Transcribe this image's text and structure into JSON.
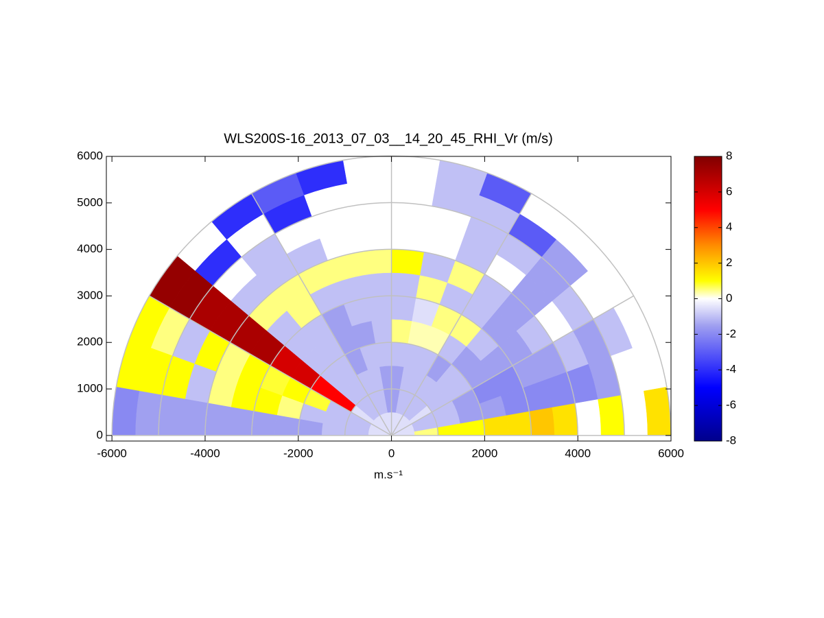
{
  "chart_data": {
    "type": "polar_heatmap",
    "title": "WLS200S-16_2013_07_03__14_20_45_RHI_Vr (m/s)",
    "xlabel": "m.s⁻¹",
    "xlim": [
      -6120,
      6000
    ],
    "ylim": [
      -120,
      6000
    ],
    "xticks": [
      -6000,
      -4000,
      -2000,
      0,
      2000,
      4000,
      6000
    ],
    "yticks": [
      0,
      1000,
      2000,
      3000,
      4000,
      5000,
      6000
    ],
    "polar_grid": {
      "rings": [
        1000,
        2000,
        3000,
        4000,
        5000,
        6000
      ],
      "spokes": [
        0,
        30,
        60,
        90,
        120,
        150,
        180
      ]
    },
    "angles": [
      0,
      10,
      20,
      30,
      40,
      50,
      60,
      70,
      80,
      90,
      100,
      110,
      120,
      130,
      140,
      150,
      160,
      170,
      180
    ],
    "ranges": [
      0,
      500,
      1000,
      1500,
      2000,
      2500,
      3000,
      3500,
      4000,
      4500,
      5000,
      5500,
      6000
    ],
    "values": [
      [
        -0.5,
        0.5,
        1,
        1,
        1.5,
        1.5,
        2,
        1.5,
        null,
        1,
        null,
        1.5
      ],
      [
        -0.5,
        -1,
        -1,
        -1.5,
        -1.5,
        -2,
        -2,
        -2,
        -2,
        -1.5,
        null,
        null
      ],
      [
        -0.5,
        -1,
        -1,
        -1.5,
        -2,
        -2,
        -1.5,
        -1.5,
        -1,
        -1.5,
        -1,
        null
      ],
      [
        -0.5,
        -0.5,
        -1,
        -1,
        -1.5,
        -1.5,
        -1.5,
        -1,
        null,
        -1,
        null,
        null
      ],
      [
        -0.5,
        -1,
        -1,
        -1,
        -1.5,
        -1,
        -1.5,
        -1.5,
        -1.5,
        -1.5,
        -1.5,
        null
      ],
      [
        -0.5,
        -1,
        -1,
        -1.5,
        -1,
        0.5,
        -1,
        -1,
        null,
        -1,
        -3,
        null
      ],
      [
        -0.5,
        -1,
        -1,
        -1,
        0.3,
        0.5,
        -1,
        0.5,
        -1,
        -1,
        -1,
        -3
      ],
      [
        -0.5,
        -1,
        -1,
        -1,
        0.3,
        -0.5,
        0.5,
        -1,
        null,
        null,
        -1,
        -1
      ],
      [
        -0.5,
        -1.5,
        -1.5,
        -1,
        0.5,
        -1,
        -1,
        1,
        null,
        null,
        null,
        null
      ],
      [
        -0.5,
        -1.5,
        -1.5,
        -1,
        -1,
        -1,
        -1,
        0.5,
        null,
        null,
        null,
        null
      ],
      [
        -0.5,
        -1,
        -1,
        -1,
        -1.5,
        -1,
        -1,
        0.5,
        null,
        null,
        null,
        -4
      ],
      [
        -0.5,
        -1,
        -1,
        -1.5,
        -1.5,
        -1.5,
        -1,
        0.5,
        -1,
        null,
        -4,
        -3
      ],
      [
        -0.5,
        -1,
        -1,
        -1,
        -1,
        -1,
        0.5,
        0.5,
        -1,
        -1,
        null,
        -4
      ],
      [
        -0.5,
        -1,
        -1,
        -1,
        -1,
        -1,
        -1,
        0.5,
        -1,
        null,
        -4,
        null
      ],
      [
        -0.5,
        -0.5,
        5,
        5,
        6,
        6,
        7,
        7,
        7,
        7,
        7.5,
        7.5
      ],
      [
        -0.5,
        -1,
        -1,
        0.8,
        1,
        0.8,
        1,
        0.5,
        1,
        -1,
        0.5,
        1
      ],
      [
        -0.5,
        -1,
        -1,
        -1,
        0.5,
        1,
        1,
        0.5,
        -1,
        1,
        1,
        1
      ],
      [
        -0.5,
        -1,
        -1,
        -1.5,
        -1.5,
        -1.5,
        -1.5,
        -1.5,
        -1.5,
        -1.5,
        -1.5,
        -2
      ]
    ],
    "clim": [
      -8,
      8
    ],
    "cticks": [
      -8,
      -6,
      -4,
      -2,
      0,
      2,
      4,
      6,
      8
    ],
    "colorscale": [
      [
        -8,
        "#00008b"
      ],
      [
        -5,
        "#0000ff"
      ],
      [
        -1.5,
        "#a0a0f0"
      ],
      [
        0,
        "#ffffff"
      ],
      [
        1,
        "#ffff00"
      ],
      [
        3,
        "#ff8c00"
      ],
      [
        5,
        "#ff0000"
      ],
      [
        8,
        "#800000"
      ]
    ]
  }
}
